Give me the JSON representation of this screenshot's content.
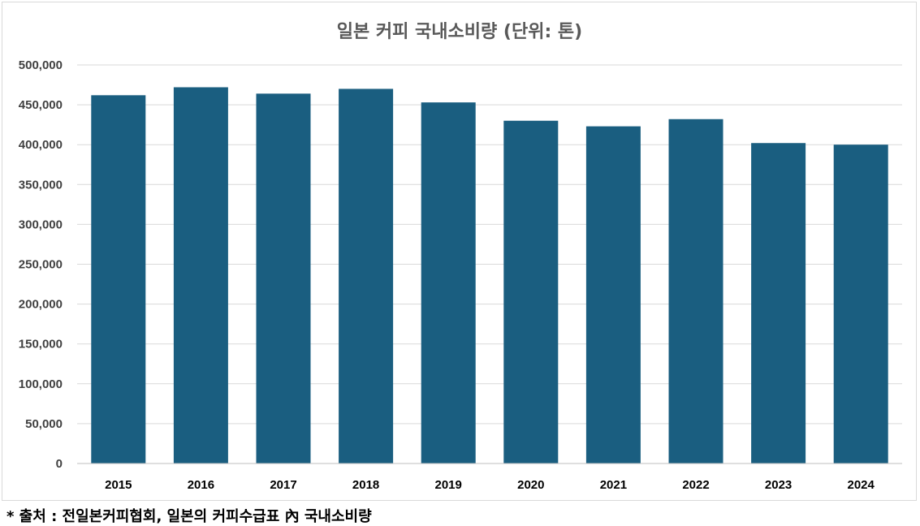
{
  "chart_data": {
    "type": "bar",
    "title": "일본 커피 국내소비량 (단위: 톤)",
    "categories": [
      "2015",
      "2016",
      "2017",
      "2018",
      "2019",
      "2020",
      "2021",
      "2022",
      "2023",
      "2024"
    ],
    "values": [
      462000,
      472000,
      464000,
      470000,
      453000,
      430000,
      423000,
      432000,
      402000,
      400000
    ],
    "ylim": [
      0,
      500000
    ],
    "yticks": [
      "0",
      "50,000",
      "100,000",
      "150,000",
      "200,000",
      "250,000",
      "300,000",
      "350,000",
      "400,000",
      "450,000",
      "500,000"
    ],
    "grid": true,
    "bar_color": "#1a5e80",
    "grid_color": "#d9d9d9"
  },
  "source_note": "* 출처 : 전일본커피협회, 일본의 커피수급표 內 국내소비량"
}
